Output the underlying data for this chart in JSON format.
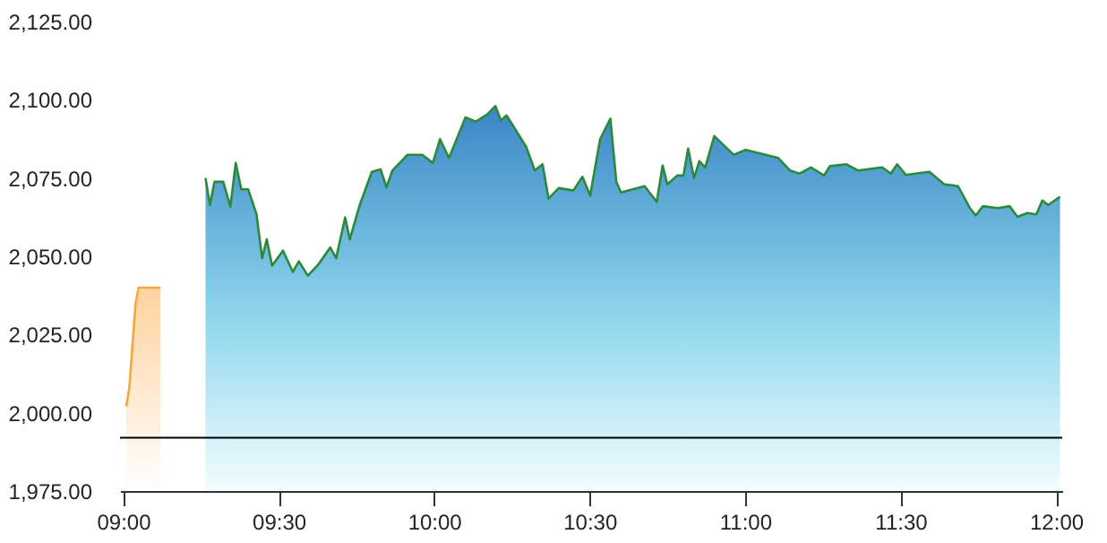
{
  "chart_data": {
    "type": "area",
    "xlim": [
      8.99,
      12.02
    ],
    "ylim": [
      1975,
      2125
    ],
    "xticks": [
      {
        "value": 9,
        "label": "09:00"
      },
      {
        "value": 9.5,
        "label": "09:30"
      },
      {
        "value": 10,
        "label": "10:00"
      },
      {
        "value": 10.5,
        "label": "10:30"
      },
      {
        "value": 11,
        "label": "11:00"
      },
      {
        "value": 11.5,
        "label": "11:30"
      },
      {
        "value": 12,
        "label": "12:00"
      }
    ],
    "yticks": [
      {
        "value": 1975,
        "label": "1,975.00"
      },
      {
        "value": 2000,
        "label": "2,000.00"
      },
      {
        "value": 2025,
        "label": "2,025.00"
      },
      {
        "value": 2050,
        "label": "2,050.00"
      },
      {
        "value": 2075,
        "label": "2,075.00"
      },
      {
        "value": 2100,
        "label": "2,100.00"
      },
      {
        "value": 2125,
        "label": "2,125.00"
      }
    ],
    "ref_lines": [
      {
        "axis": "y",
        "value": 1992,
        "color": "#000000"
      }
    ],
    "series": [
      {
        "color": "#f2a93b",
        "x": [
          9.01,
          9.02,
          9.04,
          9.05,
          9.12
        ],
        "values": [
          2002,
          2008,
          2035,
          2040,
          2040
        ]
      },
      {
        "color": "#2a8a3a",
        "x": [
          9.265,
          9.279,
          9.294,
          9.322,
          9.345,
          9.362,
          9.38,
          9.402,
          9.429,
          9.447,
          9.462,
          9.479,
          9.514,
          9.546,
          9.565,
          9.594,
          9.628,
          9.666,
          9.685,
          9.714,
          9.729,
          9.761,
          9.8,
          9.828,
          9.847,
          9.866,
          9.914,
          9.962,
          9.996,
          10.019,
          10.048,
          10.101,
          10.134,
          10.172,
          10.197,
          10.215,
          10.233,
          10.296,
          10.324,
          10.349,
          10.368,
          10.401,
          10.448,
          10.477,
          10.502,
          10.534,
          10.567,
          10.586,
          10.601,
          10.677,
          10.716,
          10.735,
          10.75,
          10.782,
          10.802,
          10.817,
          10.836,
          10.853,
          10.872,
          10.901,
          10.964,
          11.002,
          11.107,
          11.145,
          11.174,
          11.212,
          11.254,
          11.273,
          11.326,
          11.364,
          11.441,
          11.469,
          11.489,
          11.517,
          11.593,
          11.641,
          11.685,
          11.723,
          11.742,
          11.765,
          11.813,
          11.851,
          11.876,
          11.908,
          11.937,
          11.956,
          11.975,
          12.013
        ],
        "values": [
          2075,
          2066.4,
          2073.8,
          2073.8,
          2065.8,
          2079.8,
          2071.4,
          2071.4,
          2063.4,
          2049.4,
          2055.4,
          2047,
          2051.8,
          2045,
          2048.4,
          2043.8,
          2047.4,
          2052.8,
          2049.4,
          2062.4,
          2055.4,
          2066.4,
          2077,
          2077.8,
          2072,
          2077.4,
          2082.4,
          2082.4,
          2079.8,
          2087.4,
          2081.4,
          2094.4,
          2093,
          2095.4,
          2098,
          2093.4,
          2095,
          2085,
          2077.4,
          2079.4,
          2068.4,
          2071.8,
          2071,
          2075.4,
          2069.4,
          2087.4,
          2094,
          2073.8,
          2070.4,
          2072.4,
          2067.4,
          2079,
          2073,
          2075.8,
          2075.8,
          2084.4,
          2075,
          2080.4,
          2078.4,
          2088.4,
          2082.4,
          2084,
          2081.4,
          2077.4,
          2076.4,
          2078.4,
          2075.8,
          2078.8,
          2079.4,
          2077.4,
          2078.4,
          2076.4,
          2079.4,
          2076,
          2077,
          2073,
          2072.4,
          2065.4,
          2063,
          2066,
          2065.4,
          2066,
          2062.6,
          2063.8,
          2063.4,
          2067.8,
          2066.4,
          2069
        ]
      }
    ]
  }
}
